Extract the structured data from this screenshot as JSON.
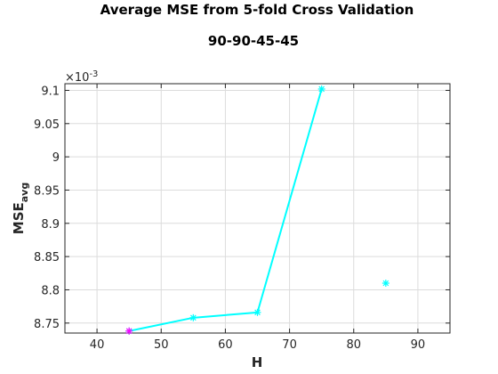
{
  "chart_data": {
    "type": "line",
    "title": "Average MSE from 5-fold Cross Validation",
    "subtitle": "90-90-45-45",
    "xlabel": "H",
    "ylabel_main": "MSE",
    "ylabel_sub": "avg",
    "y_exponent_label": "×10",
    "y_exponent_power": "-3",
    "xlim": [
      35,
      95
    ],
    "ylim": [
      8.735,
      9.11
    ],
    "x_ticks": [
      40,
      50,
      60,
      70,
      80,
      90
    ],
    "x_tick_labels": [
      "40",
      "50",
      "60",
      "70",
      "80",
      "90"
    ],
    "y_ticks": [
      8.75,
      8.8,
      8.85,
      8.9,
      8.95,
      9.0,
      9.05,
      9.1
    ],
    "y_tick_labels": [
      "8.75",
      "8.8",
      "8.85",
      "8.9",
      "8.95",
      "9",
      "9.05",
      "9.1"
    ],
    "grid": true,
    "series": [
      {
        "name": "MSE avg",
        "color": "#00ffff",
        "marker": "asterisk",
        "x": [
          45,
          55,
          65,
          75,
          85
        ],
        "y": [
          8.738,
          8.758,
          8.766,
          9.102,
          8.81
        ],
        "connected": [
          true,
          true,
          true,
          true,
          false
        ]
      }
    ],
    "highlight": {
      "x": 45,
      "y": 8.738,
      "color": "#ff00ff"
    }
  }
}
